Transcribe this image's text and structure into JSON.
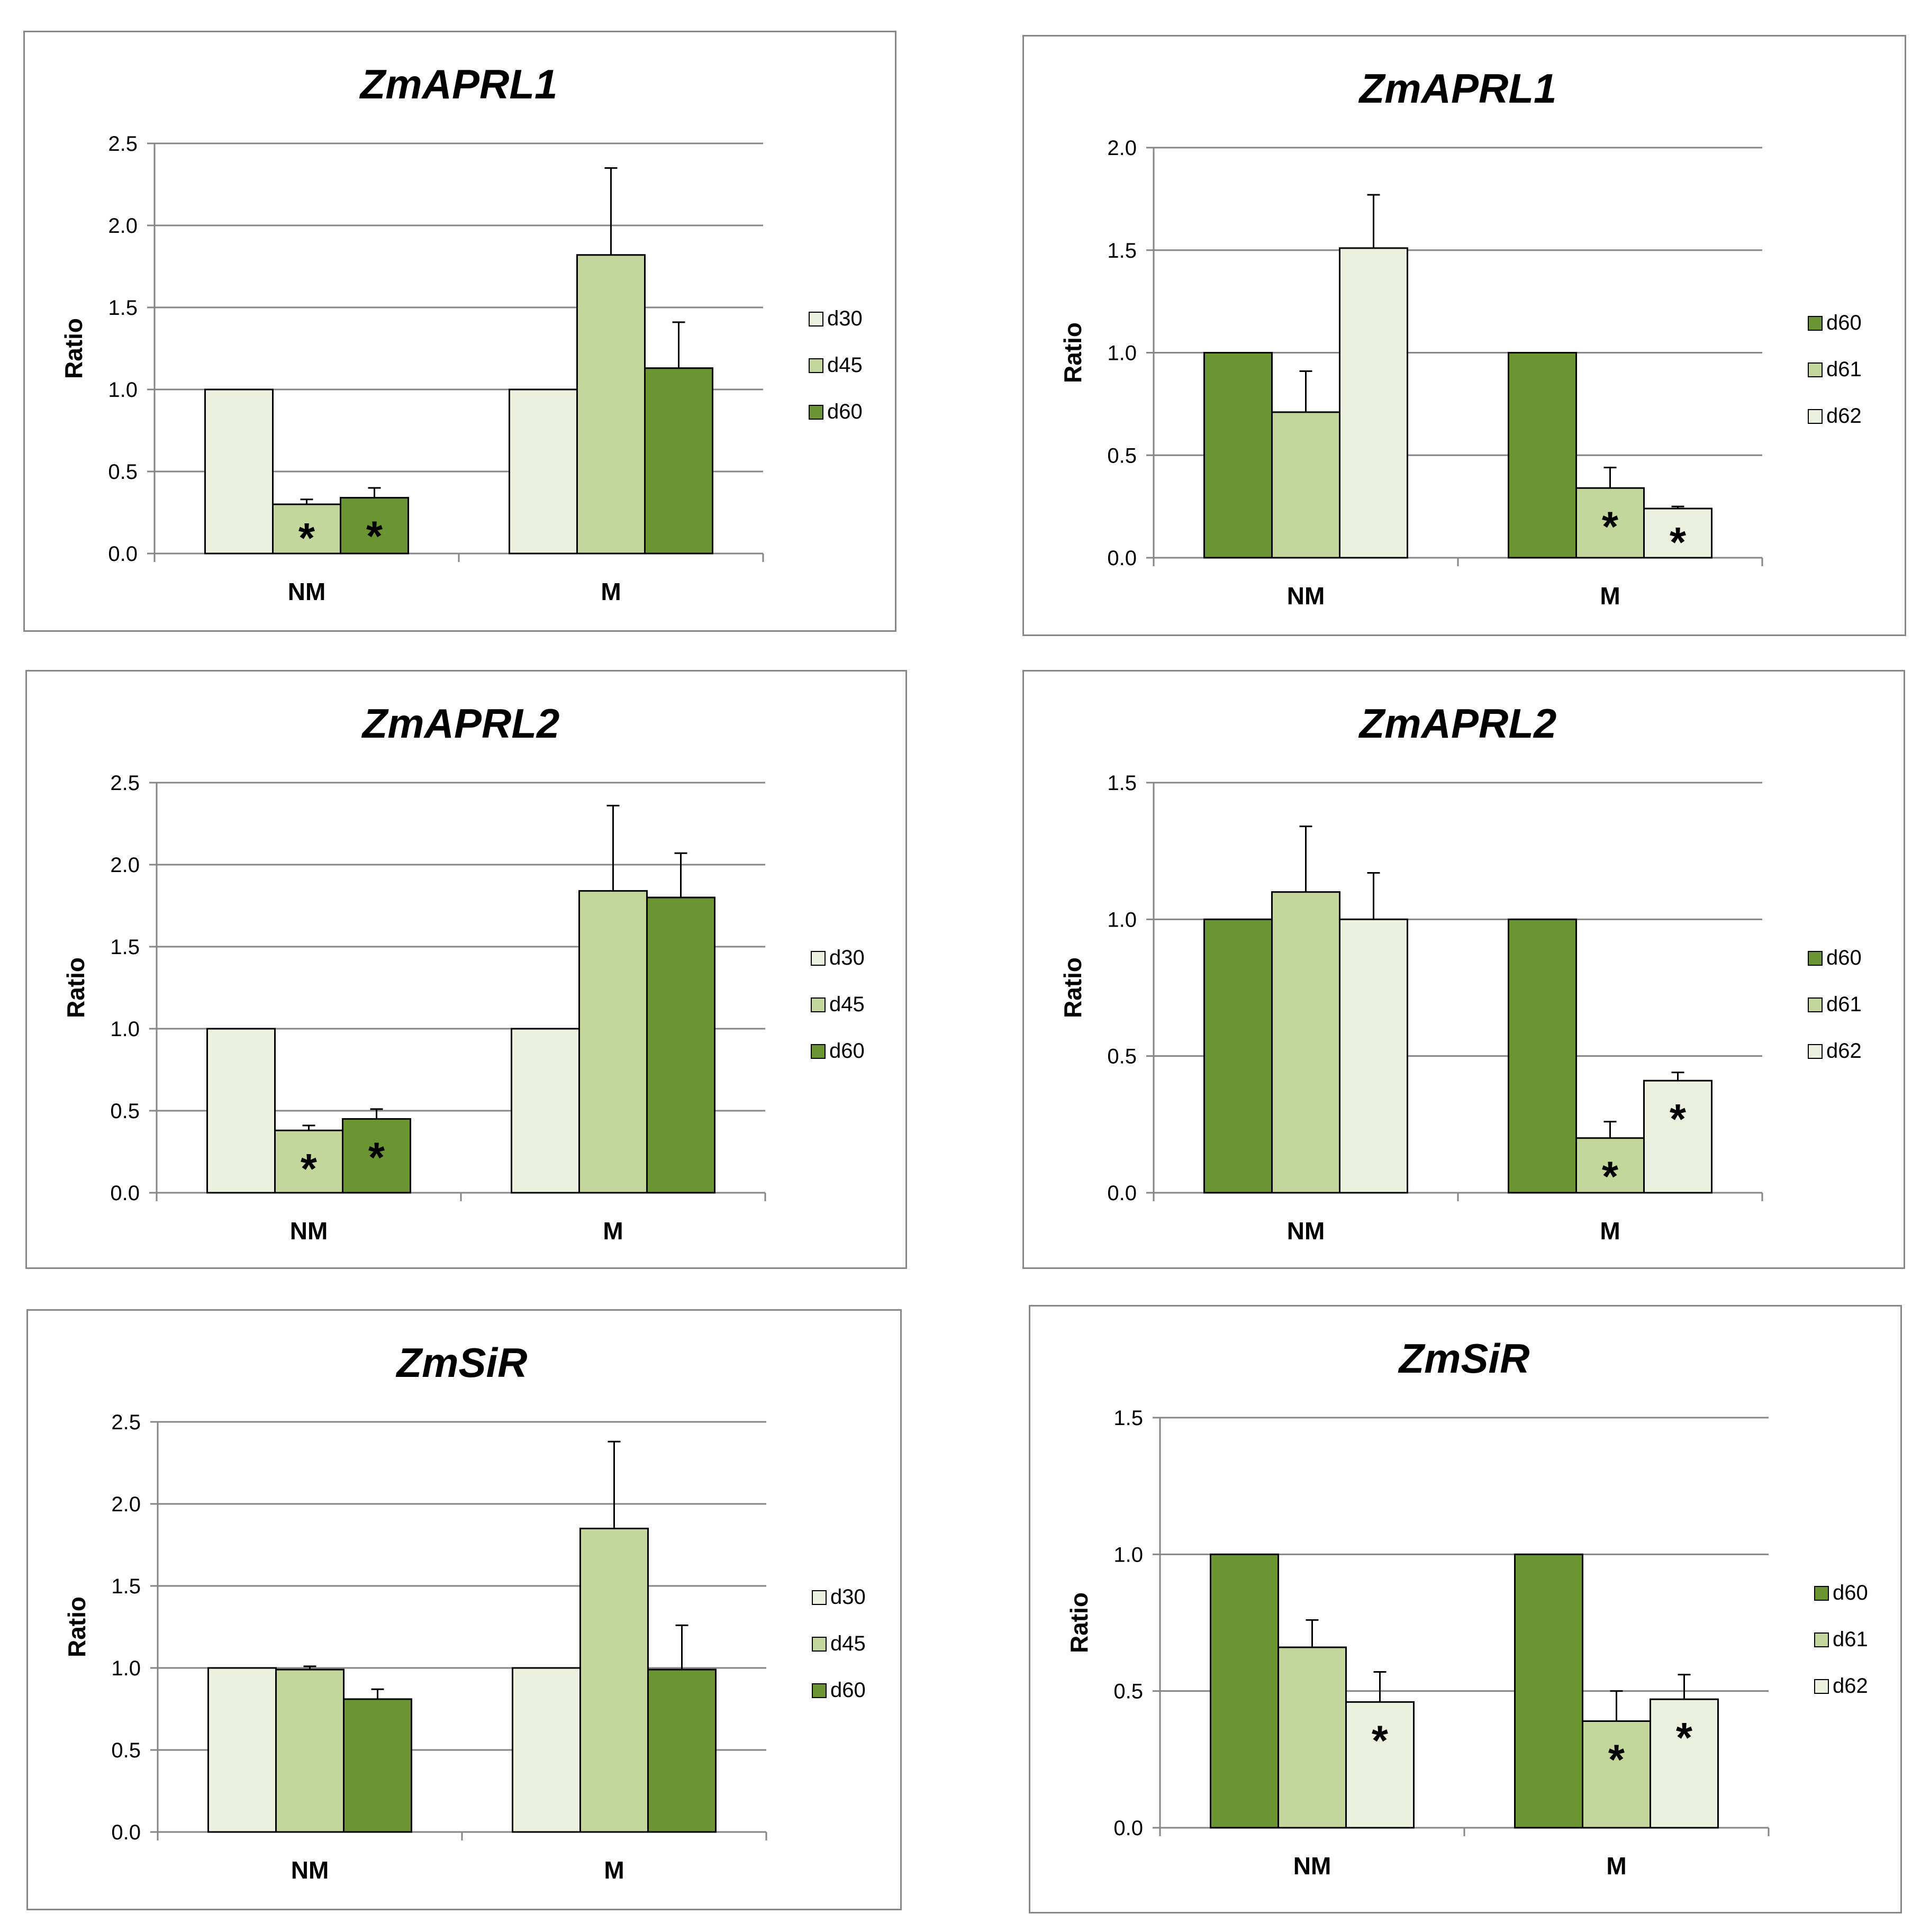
{
  "chart_data": [
    {
      "type": "bar",
      "title": "ZmAPRL1",
      "xlabel": "",
      "ylabel": "Ratio",
      "ylim": [
        0,
        2.5
      ],
      "yticks": [
        "0.0",
        "0.5",
        "1.0",
        "1.5",
        "2.0",
        "2.5"
      ],
      "categories": [
        "NM",
        "M"
      ],
      "legend_position": "right",
      "series": [
        {
          "name": "d30",
          "color": "#EBF1DE",
          "values": [
            1.0,
            1.0
          ],
          "errors": [
            0,
            0
          ],
          "significant": [
            false,
            false
          ]
        },
        {
          "name": "d45",
          "color": "#C3D69B",
          "values": [
            0.3,
            1.82
          ],
          "errors": [
            0.03,
            0.53
          ],
          "significant": [
            true,
            false
          ]
        },
        {
          "name": "d60",
          "color": "#6A9532",
          "values": [
            0.34,
            1.13
          ],
          "errors": [
            0.06,
            0.28
          ],
          "significant": [
            true,
            false
          ]
        }
      ],
      "significance_marker": "*"
    },
    {
      "type": "bar",
      "title": "ZmAPRL1",
      "xlabel": "",
      "ylabel": "Ratio",
      "ylim": [
        0,
        2.0
      ],
      "yticks": [
        "0.0",
        "0.5",
        "1.0",
        "1.5",
        "2.0"
      ],
      "categories": [
        "NM",
        "M"
      ],
      "legend_position": "right",
      "series": [
        {
          "name": "d60",
          "color": "#6A9532",
          "values": [
            1.0,
            1.0
          ],
          "errors": [
            0,
            0
          ],
          "significant": [
            false,
            false
          ]
        },
        {
          "name": "d61",
          "color": "#C3D69B",
          "values": [
            0.71,
            0.34
          ],
          "errors": [
            0.2,
            0.1
          ],
          "significant": [
            false,
            true
          ]
        },
        {
          "name": "d62",
          "color": "#EBF1DE",
          "values": [
            1.51,
            0.24
          ],
          "errors": [
            0.26,
            0.01
          ],
          "significant": [
            false,
            true
          ]
        }
      ],
      "significance_marker": "*"
    },
    {
      "type": "bar",
      "title": "ZmAPRL2",
      "xlabel": "",
      "ylabel": "Ratio",
      "ylim": [
        0,
        2.5
      ],
      "yticks": [
        "0.0",
        "0.5",
        "1.0",
        "1.5",
        "2.0",
        "2.5"
      ],
      "categories": [
        "NM",
        "M"
      ],
      "legend_position": "right",
      "series": [
        {
          "name": "d30",
          "color": "#EBF1DE",
          "values": [
            1.0,
            1.0
          ],
          "errors": [
            0,
            0
          ],
          "significant": [
            false,
            false
          ]
        },
        {
          "name": "d45",
          "color": "#C3D69B",
          "values": [
            0.38,
            1.84
          ],
          "errors": [
            0.03,
            0.52
          ],
          "significant": [
            true,
            false
          ]
        },
        {
          "name": "d60",
          "color": "#6A9532",
          "values": [
            0.45,
            1.8
          ],
          "errors": [
            0.06,
            0.27
          ],
          "significant": [
            true,
            false
          ]
        }
      ],
      "significance_marker": "*"
    },
    {
      "type": "bar",
      "title": "ZmAPRL2",
      "xlabel": "",
      "ylabel": "Ratio",
      "ylim": [
        0,
        1.5
      ],
      "yticks": [
        "0.0",
        "0.5",
        "1.0",
        "1.5"
      ],
      "categories": [
        "NM",
        "M"
      ],
      "legend_position": "right",
      "series": [
        {
          "name": "d60",
          "color": "#6A9532",
          "values": [
            1.0,
            1.0
          ],
          "errors": [
            0,
            0
          ],
          "significant": [
            false,
            false
          ]
        },
        {
          "name": "d61",
          "color": "#C3D69B",
          "values": [
            1.1,
            0.2
          ],
          "errors": [
            0.24,
            0.06
          ],
          "significant": [
            false,
            true
          ]
        },
        {
          "name": "d62",
          "color": "#EBF1DE",
          "values": [
            1.0,
            0.41
          ],
          "errors": [
            0.17,
            0.03
          ],
          "significant": [
            false,
            true
          ]
        }
      ],
      "significance_marker": "*"
    },
    {
      "type": "bar",
      "title": "ZmSiR",
      "xlabel": "",
      "ylabel": "Ratio",
      "ylim": [
        0,
        2.5
      ],
      "yticks": [
        "0.0",
        "0.5",
        "1.0",
        "1.5",
        "2.0",
        "2.5"
      ],
      "categories": [
        "NM",
        "M"
      ],
      "legend_position": "right",
      "series": [
        {
          "name": "d30",
          "color": "#EBF1DE",
          "values": [
            1.0,
            1.0
          ],
          "errors": [
            0,
            0
          ],
          "significant": [
            false,
            false
          ]
        },
        {
          "name": "d45",
          "color": "#C3D69B",
          "values": [
            0.99,
            1.85
          ],
          "errors": [
            0.02,
            0.53
          ],
          "significant": [
            false,
            false
          ]
        },
        {
          "name": "d60",
          "color": "#6A9532",
          "values": [
            0.81,
            0.99
          ],
          "errors": [
            0.06,
            0.27
          ],
          "significant": [
            false,
            false
          ]
        }
      ],
      "significance_marker": "*"
    },
    {
      "type": "bar",
      "title": "ZmSiR",
      "xlabel": "",
      "ylabel": "Ratio",
      "ylim": [
        0,
        1.5
      ],
      "yticks": [
        "0.0",
        "0.5",
        "1.0",
        "1.5"
      ],
      "categories": [
        "NM",
        "M"
      ],
      "legend_position": "right",
      "series": [
        {
          "name": "d60",
          "color": "#6A9532",
          "values": [
            1.0,
            1.0
          ],
          "errors": [
            0,
            0
          ],
          "significant": [
            false,
            false
          ]
        },
        {
          "name": "d61",
          "color": "#C3D69B",
          "values": [
            0.66,
            0.39
          ],
          "errors": [
            0.1,
            0.11
          ],
          "significant": [
            false,
            true
          ]
        },
        {
          "name": "d62",
          "color": "#EBF1DE",
          "values": [
            0.46,
            0.47
          ],
          "errors": [
            0.11,
            0.09
          ],
          "significant": [
            true,
            true
          ]
        }
      ],
      "significance_marker": "*"
    }
  ]
}
